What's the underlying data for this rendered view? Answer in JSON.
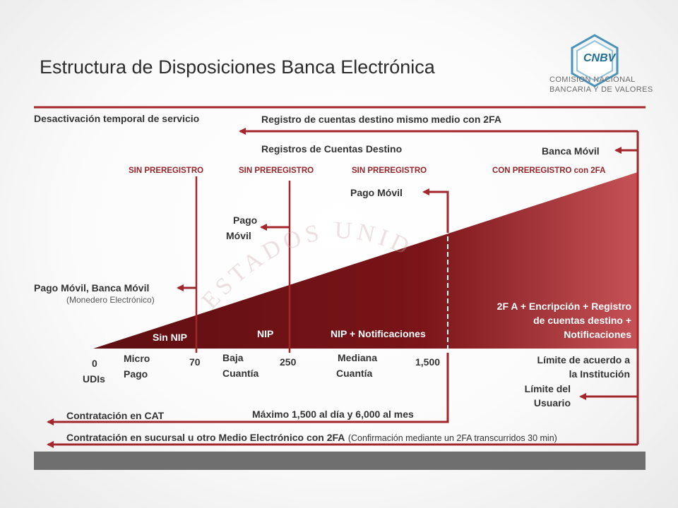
{
  "title": "Estructura de Disposiciones Banca Electrónica",
  "logo": {
    "abbr": "CNBV",
    "line1": "COMISION NACIONAL",
    "line2": "BANCARIA Y DE VALORES"
  },
  "watermark": "ESTADOS UNIDOS ME",
  "top": {
    "desactivacion": "Desactivación temporal de servicio",
    "registro_mismo_medio": "Registro de cuentas destino mismo medio con 2FA",
    "registros_cuentas": "Registros de Cuentas Destino",
    "banca_movil": "Banca Móvil"
  },
  "preregistro": {
    "p1": "SIN PREREGISTRO",
    "p2": "SIN PREREGISTRO",
    "p3": "SIN PREREGISTRO",
    "p4": "CON PREREGISTRO con 2FA"
  },
  "labels": {
    "pago_movil_right": "Pago Móvil",
    "pago_movil_mid_1": "Pago",
    "pago_movil_mid_2": "Móvil",
    "pago_movil_banca": "Pago Móvil, Banca Móvil",
    "monedero": "(Monedero Electrónico)",
    "sin_nip": "Sin NIP",
    "nip": "NIP",
    "nip_notif": "NIP + Notificaciones",
    "encripcion_1": "2F A + Encripción + Registro",
    "encripcion_2": "de cuentas destino +",
    "encripcion_3": "Notificaciones"
  },
  "axis": {
    "zero": "0",
    "udis": "UDIs",
    "micro_1": "Micro",
    "micro_2": "Pago",
    "v70": "70",
    "baja_1": "Baja",
    "baja_2": "Cuantía",
    "v250": "250",
    "mediana_1": "Mediana",
    "mediana_2": "Cuantía",
    "v1500": "1,500",
    "limite_inst_1": "Límite de acuerdo a",
    "limite_inst_2": "la Institución",
    "limite_usr_1": "Límite del",
    "limite_usr_2": "Usuario"
  },
  "bottom": {
    "contratacion_cat": "Contratación en CAT",
    "maximo": "Máximo 1,500 al día y 6,000 al mes",
    "contratacion_sucursal": "Contratación en sucursal u otro Medio Electrónico con 2FA",
    "confirmacion": "(Confirmación mediante un 2FA transcurridos 30 min)"
  },
  "colors": {
    "accent": "#a3262c",
    "dark_red": "#7a1418",
    "band": "#6f6f6f"
  }
}
